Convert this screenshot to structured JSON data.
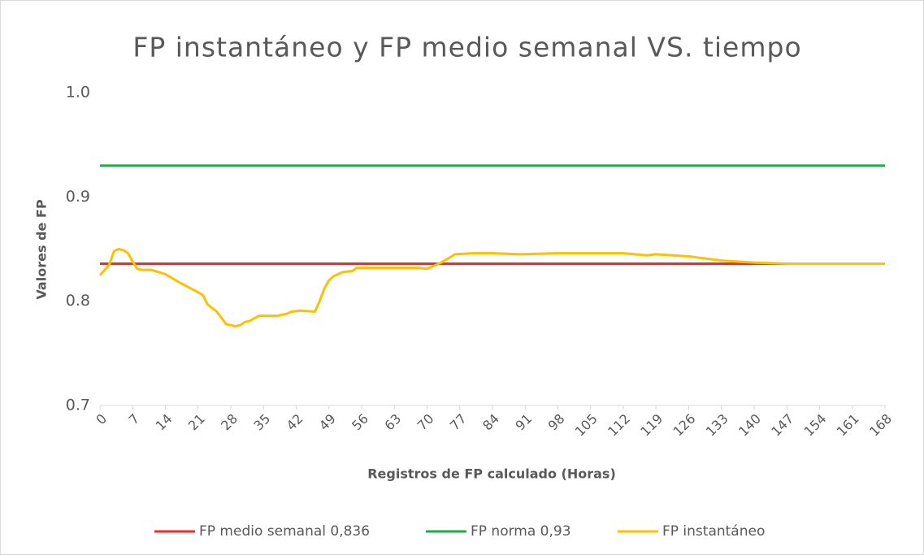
{
  "chart_data": {
    "type": "line",
    "title": "FP instantáneo y FP medio semanal VS. tiempo",
    "x_label": "Registros de FP calculado (Horas)",
    "y_label": "Valores de FP",
    "xlim": [
      0,
      168
    ],
    "xticks": [
      0,
      7,
      14,
      21,
      28,
      35,
      42,
      49,
      56,
      63,
      70,
      77,
      84,
      91,
      98,
      105,
      112,
      119,
      126,
      133,
      140,
      147,
      154,
      161,
      168
    ],
    "ylim": [
      0.7,
      1
    ],
    "yticks": [
      0.7,
      0.8,
      0.9,
      {
        "value": 1,
        "label": "1.0"
      }
    ],
    "grid": false,
    "legend": "bottom",
    "series": [
      {
        "name": "FP medio semanal 0,836",
        "color": "#e8302a",
        "x": [
          0,
          168
        ],
        "values": [
          0.836,
          0.836
        ]
      },
      {
        "name": "FP norma 0,93",
        "color": "#22a84a",
        "x": [
          0,
          168
        ],
        "values": [
          0.93,
          0.93
        ]
      },
      {
        "name": "FP instantáneo",
        "color": "#ffc000",
        "x": [
          0,
          2,
          3,
          4,
          5,
          6,
          7,
          8,
          9,
          11,
          14,
          17,
          20,
          22,
          23,
          25,
          27,
          29,
          30,
          31,
          32,
          34,
          38,
          40,
          41,
          43,
          46,
          47,
          48,
          49,
          50,
          52,
          54,
          55,
          59,
          68,
          70,
          73,
          76,
          80,
          84,
          90,
          98,
          105,
          112,
          117,
          119,
          126,
          133,
          140,
          147,
          160,
          168
        ],
        "values": [
          0.825,
          0.835,
          0.848,
          0.85,
          0.849,
          0.846,
          0.838,
          0.831,
          0.83,
          0.83,
          0.826,
          0.818,
          0.811,
          0.806,
          0.797,
          0.79,
          0.778,
          0.776,
          0.777,
          0.78,
          0.781,
          0.786,
          0.786,
          0.788,
          0.79,
          0.791,
          0.79,
          0.8,
          0.812,
          0.82,
          0.824,
          0.828,
          0.829,
          0.832,
          0.832,
          0.832,
          0.831,
          0.837,
          0.845,
          0.846,
          0.846,
          0.845,
          0.846,
          0.846,
          0.846,
          0.844,
          0.845,
          0.843,
          0.839,
          0.837,
          0.836,
          0.836,
          0.836
        ]
      }
    ]
  }
}
